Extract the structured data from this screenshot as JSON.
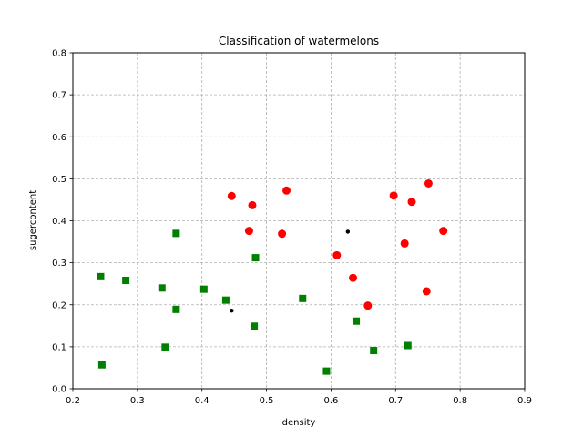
{
  "chart_data": {
    "type": "scatter",
    "title": "Classification of watermelons",
    "xlabel": "density",
    "ylabel": "sugercontent",
    "xlim": [
      0.2,
      0.9
    ],
    "ylim": [
      0.0,
      0.8
    ],
    "x_ticks": [
      0.2,
      0.3,
      0.4,
      0.5,
      0.6,
      0.7,
      0.8,
      0.9
    ],
    "y_ticks": [
      0.0,
      0.1,
      0.2,
      0.3,
      0.4,
      0.5,
      0.6,
      0.7,
      0.8
    ],
    "x_tick_labels": [
      "0.2",
      "0.3",
      "0.4",
      "0.5",
      "0.6",
      "0.7",
      "0.8",
      "0.9"
    ],
    "y_tick_labels": [
      "0.0",
      "0.1",
      "0.2",
      "0.3",
      "0.4",
      "0.5",
      "0.6",
      "0.7",
      "0.8"
    ],
    "grid": true,
    "grid_style": "dashed",
    "series": [
      {
        "marker": "circle",
        "color": "#ff0000",
        "points": [
          [
            0.697,
            0.46
          ],
          [
            0.774,
            0.376
          ],
          [
            0.634,
            0.264
          ],
          [
            0.608,
            0.318
          ],
          [
            0.556,
            0.215
          ],
          [
            0.403,
            0.237
          ],
          [
            0.481,
            0.149
          ],
          [
            0.437,
            0.211
          ],
          [
            0.666,
            0.091
          ],
          [
            0.243,
            0.267
          ],
          [
            0.245,
            0.057
          ],
          [
            0.343,
            0.099
          ],
          [
            0.639,
            0.161
          ],
          [
            0.657,
            0.198
          ],
          [
            0.36,
            0.37
          ],
          [
            0.593,
            0.042
          ],
          [
            0.719,
            0.103
          ]
        ]
      },
      {
        "marker": "circle",
        "color": "#ff0000",
        "points": []
      }
    ]
  }
}
